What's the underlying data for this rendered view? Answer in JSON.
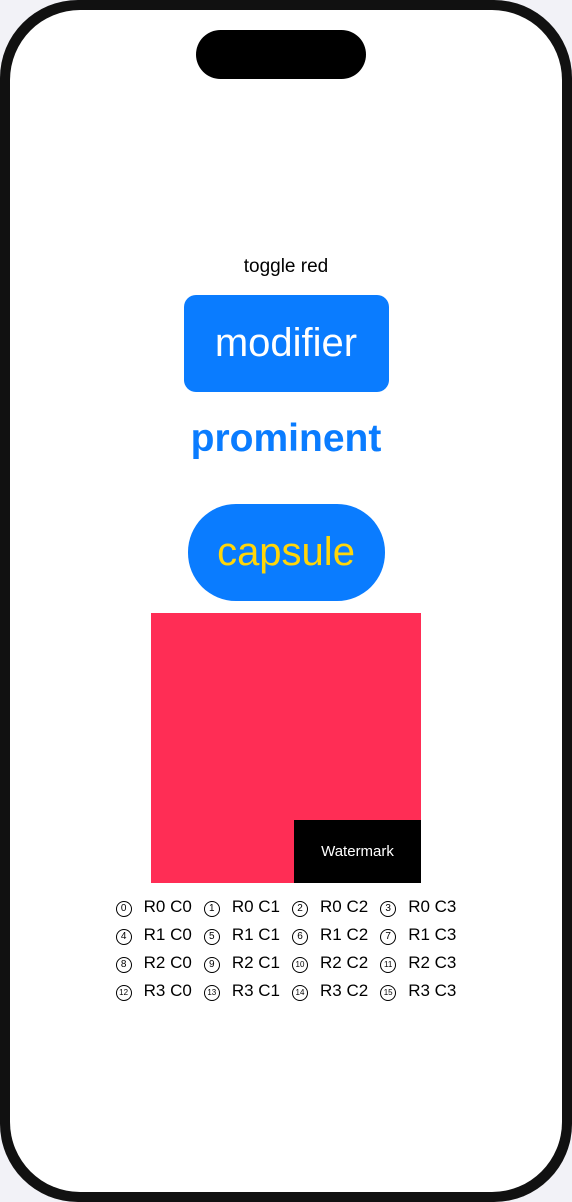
{
  "toggle_label": "toggle red",
  "modifier_label": "modifier",
  "prominent_label": "prominent",
  "capsule_label": "capsule",
  "watermark_label": "Watermark",
  "colors": {
    "accent": "#0a7cff",
    "capsule_text": "#ffd60a",
    "square": "#ff2d55",
    "watermark_bg": "#000000"
  },
  "grid": [
    [
      {
        "n": "0",
        "label": "R0 C0"
      },
      {
        "n": "1",
        "label": "R0 C1"
      },
      {
        "n": "2",
        "label": "R0 C2"
      },
      {
        "n": "3",
        "label": "R0 C3"
      }
    ],
    [
      {
        "n": "4",
        "label": "R1 C0"
      },
      {
        "n": "5",
        "label": "R1 C1"
      },
      {
        "n": "6",
        "label": "R1 C2"
      },
      {
        "n": "7",
        "label": "R1 C3"
      }
    ],
    [
      {
        "n": "8",
        "label": "R2 C0"
      },
      {
        "n": "9",
        "label": "R2 C1"
      },
      {
        "n": "10",
        "label": "R2 C2"
      },
      {
        "n": "11",
        "label": "R2 C3"
      }
    ],
    [
      {
        "n": "12",
        "label": "R3 C0"
      },
      {
        "n": "13",
        "label": "R3 C1"
      },
      {
        "n": "14",
        "label": "R3 C2"
      },
      {
        "n": "15",
        "label": "R3 C3"
      }
    ]
  ]
}
